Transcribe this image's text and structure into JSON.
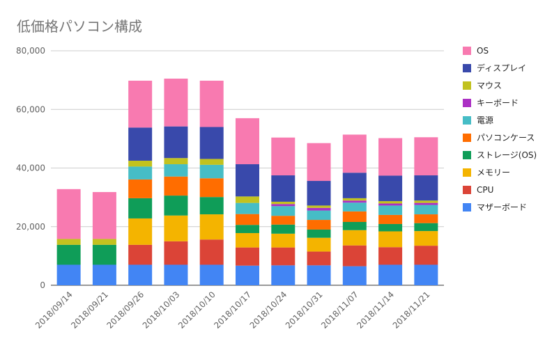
{
  "chart_data": {
    "type": "bar",
    "stacked": true,
    "title": "低価格パソコン構成",
    "xlabel": "",
    "ylabel": "",
    "ylim": [
      0,
      80000
    ],
    "y_ticks": [
      "0",
      "20,000",
      "40,000",
      "60,000",
      "80,000"
    ],
    "grid": true,
    "legend_position": "right",
    "categories": [
      "2018/09/14",
      "2018/09/21",
      "2018/09/26",
      "2018/10/03",
      "2018/10/10",
      "2018/10/17",
      "2018/10/24",
      "2018/10/31",
      "2018/11/07",
      "2018/11/14",
      "2018/11/21"
    ],
    "series": [
      {
        "name": "マザーボード",
        "color": "#4285f4",
        "values": [
          7000,
          7000,
          7000,
          7000,
          7000,
          6700,
          6800,
          6800,
          6500,
          7000,
          7000
        ]
      },
      {
        "name": "CPU",
        "color": "#db4437",
        "values": [
          0,
          0,
          6800,
          8000,
          8600,
          6200,
          6100,
          4700,
          7100,
          6000,
          6500
        ]
      },
      {
        "name": "メモリー",
        "color": "#f4b400",
        "values": [
          0,
          0,
          9000,
          8800,
          8600,
          4900,
          4700,
          4700,
          5200,
          5400,
          5000
        ]
      },
      {
        "name": "ストレージ(OS)",
        "color": "#0f9d58",
        "values": [
          6800,
          6800,
          6900,
          6800,
          5900,
          2800,
          3100,
          2800,
          2800,
          2500,
          2700
        ]
      },
      {
        "name": "パソコンケース",
        "color": "#ff6d00",
        "values": [
          0,
          0,
          6400,
          6500,
          6400,
          3700,
          3000,
          3300,
          3600,
          3100,
          3000
        ]
      },
      {
        "name": "電源",
        "color": "#46bdc6",
        "values": [
          0,
          0,
          4400,
          4200,
          4600,
          3800,
          3300,
          3200,
          3000,
          3200,
          3200
        ]
      },
      {
        "name": "キーボード",
        "color": "#ab30c4",
        "values": [
          0,
          0,
          0,
          0,
          0,
          0,
          700,
          900,
          700,
          700,
          700
        ]
      },
      {
        "name": "マウス",
        "color": "#c2c21f",
        "values": [
          2000,
          2000,
          2000,
          2100,
          2000,
          2200,
          800,
          800,
          800,
          800,
          800
        ]
      },
      {
        "name": "ディスプレイ",
        "color": "#3949ab",
        "values": [
          0,
          0,
          11300,
          10800,
          10900,
          11000,
          9000,
          8400,
          8700,
          8700,
          8600
        ]
      },
      {
        "name": "OS",
        "color": "#f87ab0",
        "values": [
          17000,
          16000,
          16000,
          16300,
          15800,
          15700,
          12900,
          12900,
          13000,
          12800,
          13000
        ]
      }
    ],
    "legend_order": [
      "OS",
      "ディスプレイ",
      "マウス",
      "キーボード",
      "電源",
      "パソコンケース",
      "ストレージ(OS)",
      "メモリー",
      "CPU",
      "マザーボード"
    ]
  }
}
